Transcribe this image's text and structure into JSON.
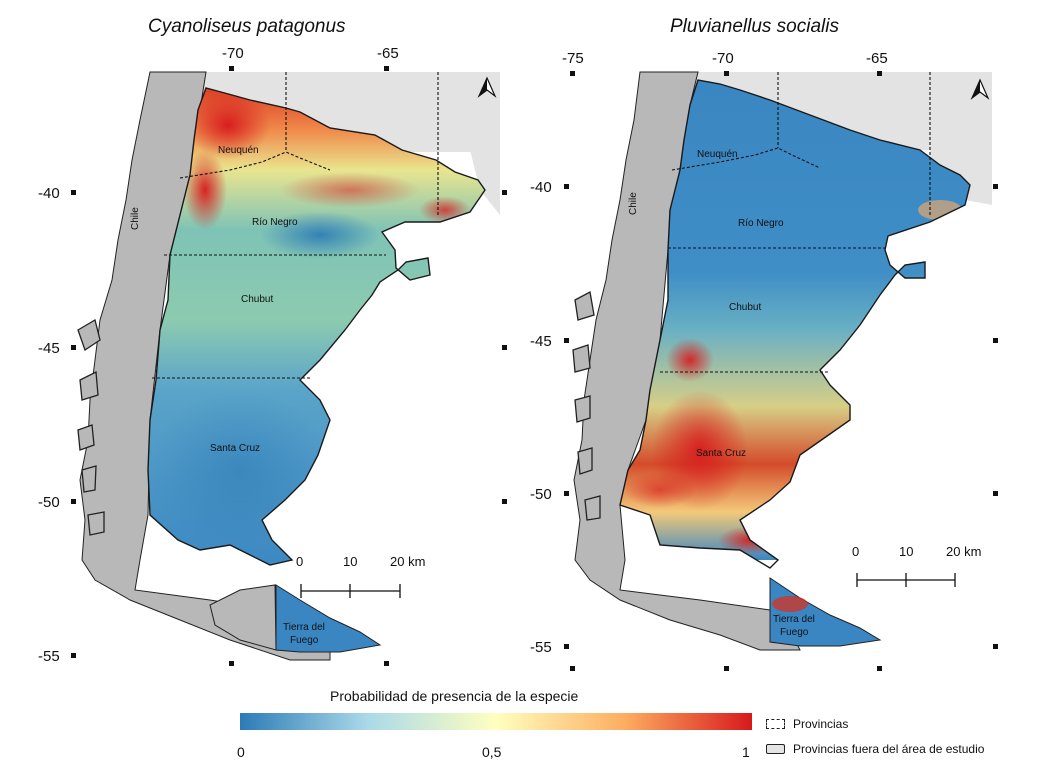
{
  "maps": [
    {
      "title": "Cyanoliseus patagonus",
      "lon_ticks": [
        "-70",
        "-65"
      ],
      "lat_ticks": [
        "-40",
        "-45",
        "-50",
        "-55"
      ],
      "provinces": [
        "Neuquén",
        "Río Negro",
        "Chubut",
        "Santa Cruz",
        "Tierra del",
        "Fuego"
      ],
      "country_label": "Chile",
      "scale": [
        "0",
        "10",
        "20 km"
      ]
    },
    {
      "title": "Pluvianellus socialis",
      "lon_ticks": [
        "-75",
        "-70",
        "-65"
      ],
      "lat_ticks": [
        "-40",
        "-45",
        "-50",
        "-55"
      ],
      "provinces": [
        "Neuquén",
        "Río Negro",
        "Chubut",
        "Santa Cruz",
        "Tierra del",
        "Fuego"
      ],
      "country_label": "Chile",
      "scale": [
        "0",
        "10",
        "20 km"
      ]
    }
  ],
  "legend": {
    "title": "Probabilidad de presencia de la especie",
    "min": "0",
    "mid": "0,5",
    "max": "1",
    "colors": [
      "#2c7bb6",
      "#abd9e9",
      "#ffffbf",
      "#fdae61",
      "#d7191c"
    ]
  },
  "keys": {
    "provinces": "Provincias",
    "outside": "Provincias fuera del área de estudio"
  },
  "north_arrow": "north-arrow-icon",
  "colors": {
    "land_outside": "#b8b8b8",
    "argentina_outside": "#e3e3e3",
    "low": "#3f8fc4",
    "mid": "#9fd3a8",
    "high": "#d7301f"
  }
}
